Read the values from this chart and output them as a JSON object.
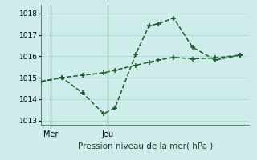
{
  "title": "Pression niveau de la mer( hPa )",
  "bg_color": "#cdecea",
  "grid_color": "#aed8d4",
  "line_color": "#1a5c28",
  "vline_color": "#5a8070",
  "ylim": [
    1012.8,
    1018.4
  ],
  "xlim": [
    0,
    11
  ],
  "yticks": [
    1013,
    1014,
    1015,
    1016,
    1017,
    1018
  ],
  "x_tick_positions": [
    0.5,
    3.5
  ],
  "x_tick_labels": [
    "Mer",
    "Jeu"
  ],
  "vline_x": [
    0.5,
    3.5
  ],
  "line1_x": [
    0.0,
    1.1,
    2.2,
    3.3,
    3.9,
    5.0,
    5.7,
    6.2,
    7.0,
    8.0,
    9.2,
    10.5
  ],
  "line1_y": [
    1014.82,
    1015.0,
    1014.28,
    1013.32,
    1013.58,
    1016.1,
    1017.42,
    1017.52,
    1017.78,
    1016.42,
    1015.82,
    1016.05
  ],
  "line2_x": [
    0.0,
    1.1,
    2.2,
    3.3,
    3.9,
    5.0,
    5.7,
    6.2,
    7.0,
    8.0,
    9.2,
    10.5
  ],
  "line2_y": [
    1014.82,
    1015.0,
    1015.12,
    1015.22,
    1015.35,
    1015.58,
    1015.72,
    1015.82,
    1015.95,
    1015.88,
    1015.92,
    1016.05
  ],
  "linewidth": 1.1,
  "markersize": 4.5,
  "ytick_fontsize": 6.5,
  "xtick_fontsize": 7,
  "title_fontsize": 7.5
}
